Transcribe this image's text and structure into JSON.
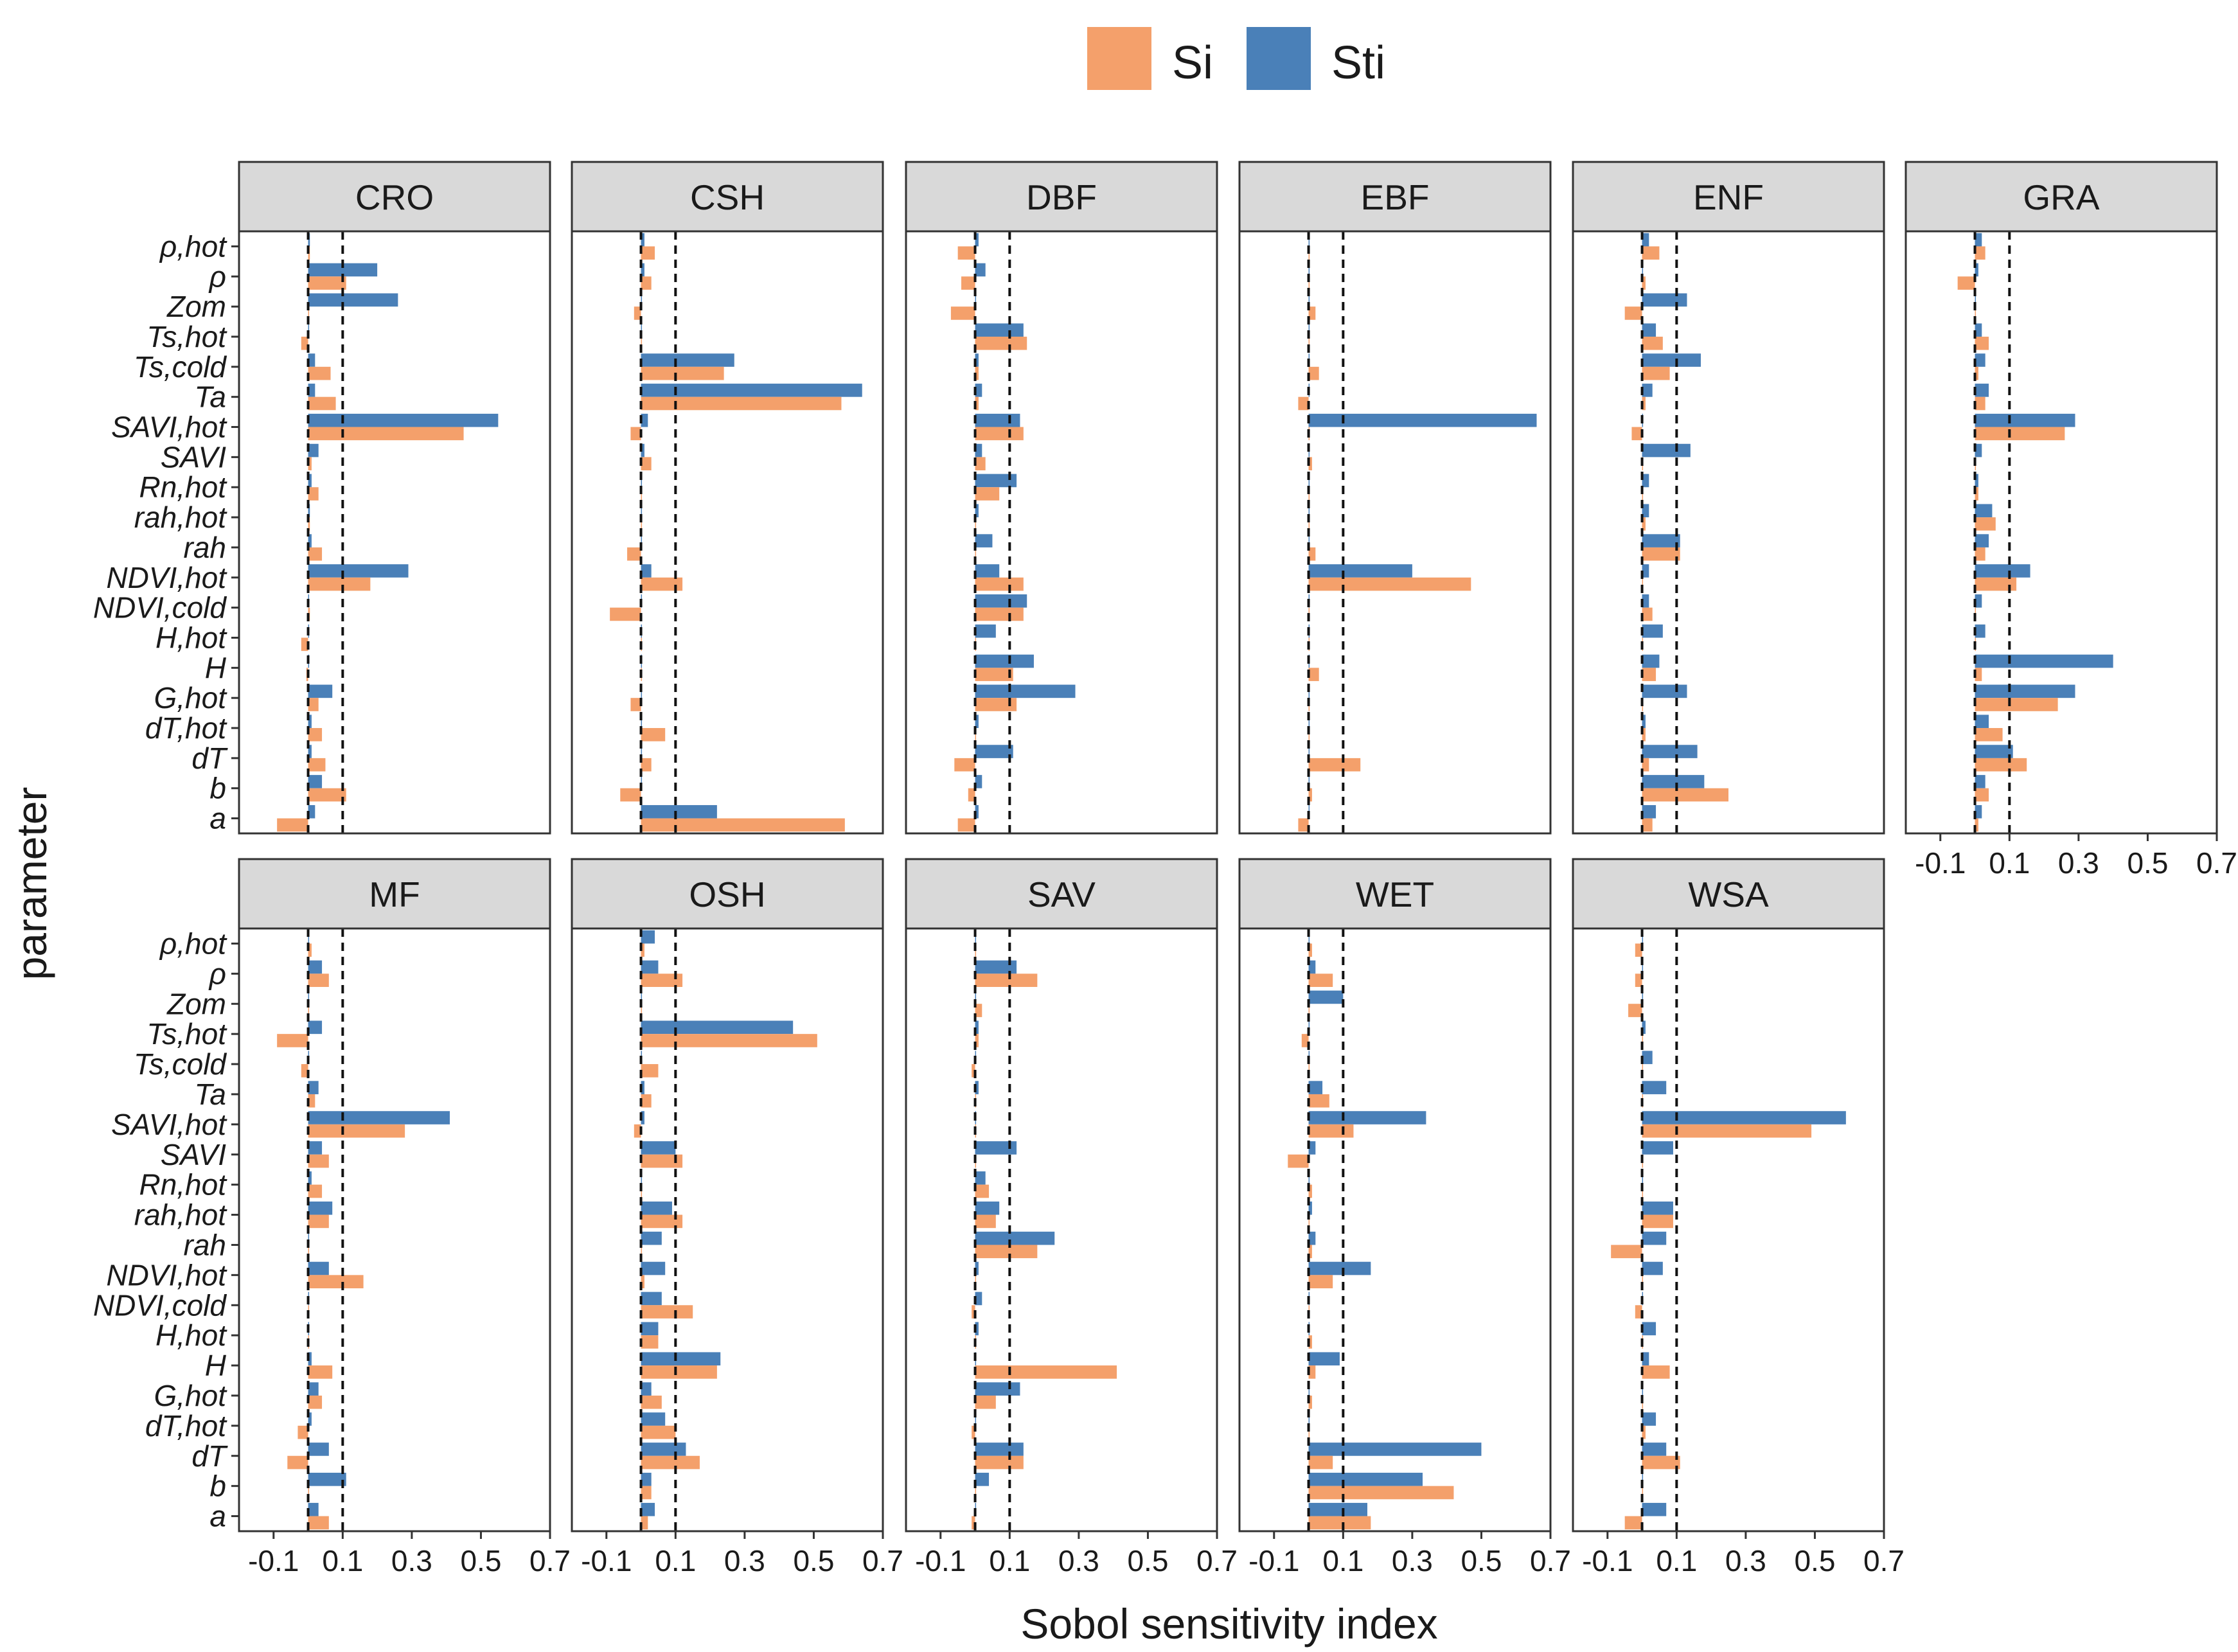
{
  "chart_data": {
    "type": "bar",
    "orientation": "horizontal",
    "facets": [
      "CRO",
      "CSH",
      "DBF",
      "EBF",
      "ENF",
      "GRA",
      "MF",
      "OSH",
      "SAV",
      "WET",
      "WSA"
    ],
    "parameters": [
      "ρ,hot",
      "ρ",
      "Zom",
      "Ts,hot",
      "Ts,cold",
      "Ta",
      "SAVI,hot",
      "SAVI",
      "Rn,hot",
      "rah,hot",
      "rah",
      "NDVI,hot",
      "NDVI,cold",
      "H,hot",
      "H",
      "G,hot",
      "dT,hot",
      "dT",
      "b",
      "a"
    ],
    "series": [
      {
        "name": "Si",
        "color": "#F4A06B"
      },
      {
        "name": "Sti",
        "color": "#4A80B8"
      }
    ],
    "xlabel": "Sobol sensitivity index",
    "ylabel": "parameter",
    "xticks": [
      -0.1,
      0.1,
      0.3,
      0.5,
      0.7
    ],
    "xtick_labels": [
      "-0.1",
      "0.1",
      "0.3",
      "0.5",
      "0.7"
    ],
    "xlim": [
      -0.2,
      0.7
    ],
    "reference_lines": [
      0,
      0.1
    ],
    "legend_position": "top",
    "grid": false,
    "values": {
      "CRO": {
        "Si": [
          0.005,
          0.11,
          0.0,
          -0.02,
          0.065,
          0.08,
          0.45,
          0.01,
          0.03,
          0.005,
          0.04,
          0.18,
          0.005,
          -0.02,
          -0.005,
          0.03,
          0.04,
          0.05,
          0.11,
          -0.09
        ],
        "Sti": [
          0.005,
          0.2,
          0.26,
          0.0,
          0.02,
          0.02,
          0.55,
          0.03,
          0.01,
          0.005,
          0.01,
          0.29,
          0.0,
          0.0,
          0.0,
          0.07,
          0.01,
          0.01,
          0.04,
          0.02
        ]
      },
      "CSH": {
        "Si": [
          0.04,
          0.03,
          -0.02,
          0.0,
          0.24,
          0.58,
          -0.03,
          0.03,
          0.0,
          0.0,
          -0.04,
          0.12,
          -0.09,
          0.0,
          0.0,
          -0.03,
          0.07,
          0.03,
          -0.06,
          0.59
        ],
        "Sti": [
          0.01,
          0.01,
          0.0,
          0.0,
          0.27,
          0.64,
          0.02,
          0.01,
          0.0,
          0.0,
          0.0,
          0.03,
          0.0,
          0.0,
          0.0,
          0.0,
          0.0,
          0.0,
          0.0,
          0.22
        ]
      },
      "DBF": {
        "Si": [
          -0.05,
          -0.04,
          -0.07,
          0.15,
          0.01,
          0.01,
          0.14,
          0.03,
          0.07,
          0.0,
          0.0,
          0.14,
          0.14,
          0.0,
          0.11,
          0.12,
          0.0,
          -0.06,
          -0.02,
          -0.05
        ],
        "Sti": [
          0.01,
          0.03,
          0.0,
          0.14,
          0.01,
          0.02,
          0.13,
          0.02,
          0.12,
          0.01,
          0.05,
          0.07,
          0.15,
          0.06,
          0.17,
          0.29,
          0.01,
          0.11,
          0.02,
          0.01
        ]
      },
      "EBF": {
        "Si": [
          0.0,
          0.0,
          0.02,
          0.0,
          0.03,
          -0.03,
          0.0,
          0.01,
          0.0,
          0.0,
          0.02,
          0.47,
          0.0,
          0.0,
          0.03,
          0.0,
          0.0,
          0.15,
          0.01,
          -0.03
        ],
        "Sti": [
          0.0,
          0.0,
          0.0,
          0.0,
          0.0,
          0.0,
          0.66,
          0.0,
          0.0,
          0.0,
          0.0,
          0.3,
          0.0,
          0.0,
          0.0,
          0.0,
          0.0,
          0.0,
          0.0,
          0.0
        ]
      },
      "ENF": {
        "Si": [
          0.05,
          0.01,
          -0.05,
          0.06,
          0.08,
          0.01,
          -0.03,
          0.0,
          0.0,
          0.01,
          0.11,
          0.0,
          0.03,
          0.0,
          0.04,
          0.0,
          0.01,
          0.02,
          0.25,
          0.03
        ],
        "Sti": [
          0.02,
          0.0,
          0.13,
          0.04,
          0.17,
          0.03,
          0.0,
          0.14,
          0.02,
          0.02,
          0.11,
          0.02,
          0.02,
          0.06,
          0.05,
          0.13,
          0.01,
          0.16,
          0.18,
          0.04
        ]
      },
      "GRA": {
        "Si": [
          0.03,
          -0.05,
          0.0,
          0.04,
          0.01,
          0.03,
          0.26,
          0.0,
          0.01,
          0.06,
          0.03,
          0.12,
          0.0,
          0.0,
          0.02,
          0.24,
          0.08,
          0.15,
          0.04,
          0.01
        ],
        "Sti": [
          0.02,
          0.01,
          0.0,
          0.02,
          0.03,
          0.04,
          0.29,
          0.02,
          0.01,
          0.05,
          0.04,
          0.16,
          0.02,
          0.03,
          0.4,
          0.29,
          0.04,
          0.11,
          0.03,
          0.02
        ]
      },
      "MF": {
        "Si": [
          0.01,
          0.06,
          0.0,
          -0.09,
          -0.02,
          0.02,
          0.28,
          0.06,
          0.04,
          0.06,
          0.0,
          0.16,
          0.0,
          0.0,
          0.07,
          0.04,
          -0.03,
          -0.06,
          0.0,
          0.06
        ],
        "Sti": [
          0.0,
          0.04,
          0.0,
          0.04,
          0.0,
          0.03,
          0.41,
          0.04,
          0.01,
          0.07,
          0.0,
          0.06,
          0.0,
          0.0,
          0.01,
          0.03,
          0.01,
          0.06,
          0.11,
          0.03
        ]
      },
      "OSH": {
        "Si": [
          0.01,
          0.12,
          0.0,
          0.51,
          0.05,
          0.03,
          -0.02,
          0.12,
          0.0,
          0.12,
          0.0,
          0.01,
          0.15,
          0.05,
          0.22,
          0.06,
          0.1,
          0.17,
          0.03,
          0.02
        ],
        "Sti": [
          0.04,
          0.05,
          0.0,
          0.44,
          0.0,
          0.01,
          0.01,
          0.1,
          0.0,
          0.09,
          0.06,
          0.07,
          0.06,
          0.05,
          0.23,
          0.03,
          0.07,
          0.13,
          0.03,
          0.04
        ]
      },
      "SAV": {
        "Si": [
          0.0,
          0.18,
          0.02,
          0.01,
          -0.01,
          0.0,
          0.0,
          0.0,
          0.04,
          0.06,
          0.18,
          0.0,
          -0.01,
          0.0,
          0.41,
          0.06,
          -0.01,
          0.14,
          0.0,
          -0.01
        ],
        "Sti": [
          0.0,
          0.12,
          0.0,
          0.01,
          0.0,
          0.01,
          0.0,
          0.12,
          0.03,
          0.07,
          0.23,
          0.01,
          0.02,
          0.01,
          0.0,
          0.13,
          0.0,
          0.14,
          0.04,
          0.0
        ]
      },
      "WET": {
        "Si": [
          0.01,
          0.07,
          0.0,
          -0.02,
          0.0,
          0.06,
          0.13,
          -0.06,
          0.01,
          0.0,
          0.01,
          0.07,
          0.0,
          0.01,
          0.02,
          0.01,
          0.0,
          0.07,
          0.42,
          0.18
        ],
        "Sti": [
          0.0,
          0.02,
          0.1,
          0.0,
          0.0,
          0.04,
          0.34,
          0.02,
          0.0,
          0.01,
          0.02,
          0.18,
          0.0,
          0.0,
          0.09,
          0.0,
          0.0,
          0.5,
          0.33,
          0.17
        ]
      },
      "WSA": {
        "Si": [
          -0.02,
          -0.02,
          -0.04,
          0.0,
          0.0,
          0.0,
          0.49,
          0.0,
          0.0,
          0.09,
          -0.09,
          0.0,
          -0.02,
          0.0,
          0.08,
          0.0,
          0.01,
          0.11,
          0.0,
          -0.05
        ],
        "Sti": [
          0.0,
          0.0,
          0.0,
          0.01,
          0.03,
          0.07,
          0.59,
          0.09,
          0.0,
          0.09,
          0.07,
          0.06,
          0.0,
          0.04,
          0.02,
          0.0,
          0.04,
          0.07,
          0.0,
          0.07
        ]
      }
    }
  }
}
